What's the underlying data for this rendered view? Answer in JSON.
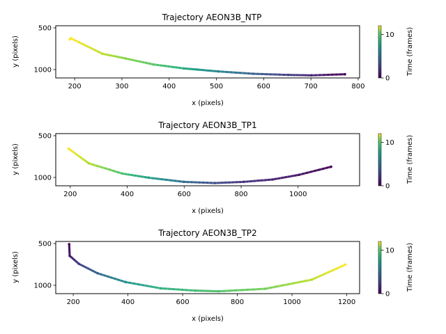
{
  "chart_data": [
    {
      "type": "scatter",
      "title": "Trajectory AEON3B_NTP",
      "xlabel": "x (pixels)",
      "ylabel": "y (pixels)",
      "xlim": [
        160,
        803
      ],
      "ylim": [
        1100,
        475
      ],
      "y_inverted": true,
      "xticks": [
        200,
        300,
        400,
        500,
        600,
        700,
        800
      ],
      "yticks": [
        500,
        1000
      ],
      "colorbar": {
        "label": "Time (frames)",
        "range": [
          0,
          12
        ],
        "ticks": [
          0,
          10
        ],
        "colormap": "viridis"
      },
      "points": [
        {
          "x": 190,
          "y": 639,
          "t": 12
        },
        {
          "x": 192,
          "y": 625,
          "t": 12
        },
        {
          "x": 259,
          "y": 811,
          "t": 10.8
        },
        {
          "x": 308,
          "y": 867,
          "t": 9.8
        },
        {
          "x": 367,
          "y": 939,
          "t": 8.8
        },
        {
          "x": 431,
          "y": 986,
          "t": 7.4
        },
        {
          "x": 460,
          "y": 1000,
          "t": 6.6
        },
        {
          "x": 504,
          "y": 1022,
          "t": 5.4
        },
        {
          "x": 578,
          "y": 1050,
          "t": 3.6
        },
        {
          "x": 652,
          "y": 1064,
          "t": 2.2
        },
        {
          "x": 701,
          "y": 1069,
          "t": 1.2
        },
        {
          "x": 772,
          "y": 1056,
          "t": 0
        }
      ]
    },
    {
      "type": "scatter",
      "title": "Trajectory AEON3B_TP1",
      "xlabel": "x (pixels)",
      "ylabel": "y (pixels)",
      "xlim": [
        149,
        1216
      ],
      "ylim": [
        1100,
        475
      ],
      "y_inverted": true,
      "xticks": [
        200,
        400,
        600,
        800,
        1000
      ],
      "yticks": [
        500,
        1000
      ],
      "colorbar": {
        "label": "Time (frames)",
        "range": [
          0,
          12
        ],
        "ticks": [
          0,
          10
        ],
        "colormap": "viridis"
      },
      "points": [
        {
          "x": 194,
          "y": 655,
          "t": 12
        },
        {
          "x": 265,
          "y": 831,
          "t": 10.6
        },
        {
          "x": 382,
          "y": 953,
          "t": 8.6
        },
        {
          "x": 475,
          "y": 1003,
          "t": 6.8
        },
        {
          "x": 599,
          "y": 1053,
          "t": 4.2
        },
        {
          "x": 708,
          "y": 1067,
          "t": 2.8
        },
        {
          "x": 809,
          "y": 1053,
          "t": 1.8
        },
        {
          "x": 910,
          "y": 1025,
          "t": 1.2
        },
        {
          "x": 1003,
          "y": 969,
          "t": 0.7
        },
        {
          "x": 1116,
          "y": 872,
          "t": 0
        }
      ]
    },
    {
      "type": "scatter",
      "title": "Trajectory AEON3B_TP2",
      "xlabel": "x (pixels)",
      "ylabel": "y (pixels)",
      "xlim": [
        136,
        1247
      ],
      "ylim": [
        1100,
        475
      ],
      "y_inverted": true,
      "xticks": [
        200,
        400,
        600,
        800,
        1000,
        1200
      ],
      "yticks": [
        500,
        1000
      ],
      "colorbar": {
        "label": "Time (frames)",
        "range": [
          0,
          12
        ],
        "ticks": [
          0,
          10
        ],
        "colormap": "viridis"
      },
      "points": [
        {
          "x": 185,
          "y": 508,
          "t": 0
        },
        {
          "x": 187,
          "y": 647,
          "t": 0.8
        },
        {
          "x": 221,
          "y": 744,
          "t": 2.2
        },
        {
          "x": 289,
          "y": 856,
          "t": 3.8
        },
        {
          "x": 391,
          "y": 961,
          "t": 6
        },
        {
          "x": 519,
          "y": 1036,
          "t": 7.6
        },
        {
          "x": 646,
          "y": 1064,
          "t": 8.2
        },
        {
          "x": 731,
          "y": 1072,
          "t": 8.6
        },
        {
          "x": 902,
          "y": 1042,
          "t": 9.4
        },
        {
          "x": 1072,
          "y": 933,
          "t": 10.8
        },
        {
          "x": 1195,
          "y": 753,
          "t": 12
        }
      ]
    }
  ]
}
